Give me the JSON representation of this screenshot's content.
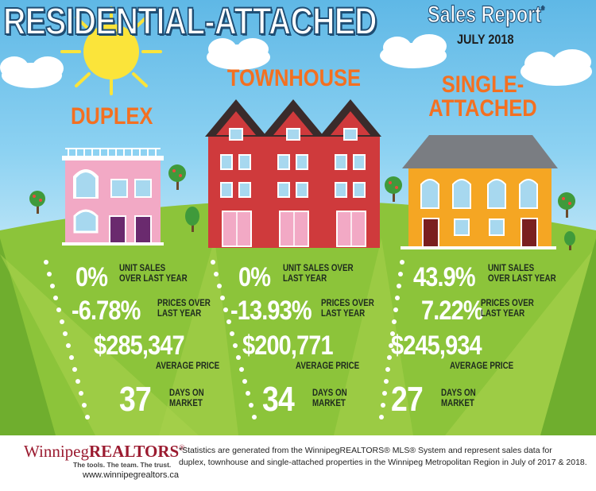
{
  "header": {
    "title": "RESIDENTIAL-ATTACHED",
    "subtitle": "Sales Report",
    "subtitle_mark": "*",
    "date": "JULY 2018"
  },
  "columns": [
    {
      "name": "DUPLEX",
      "unit_sales_pct": "0%",
      "unit_sales_label_1": "UNIT SALES",
      "unit_sales_label_2": "OVER LAST YEAR",
      "price_pct": "-6.78%",
      "price_label_1": "PRICES OVER",
      "price_label_2": "LAST YEAR",
      "avg_price": "$285,347",
      "avg_price_label": "AVERAGE PRICE",
      "days": "37",
      "days_label_1": "DAYS ON",
      "days_label_2": "MARKET",
      "house_color": "#f2a9c5"
    },
    {
      "name": "TOWNHOUSE",
      "unit_sales_pct": "0%",
      "unit_sales_label_1": "UNIT SALES OVER",
      "unit_sales_label_2": "LAST YEAR",
      "price_pct": "-13.93%",
      "price_label_1": "PRICES OVER",
      "price_label_2": "LAST YEAR",
      "avg_price": "$200,771",
      "avg_price_label": "AVERAGE PRICE",
      "days": "34",
      "days_label_1": "DAYS ON",
      "days_label_2": "MARKET",
      "house_color": "#cf3a3c"
    },
    {
      "name_line_1": "SINGLE-",
      "name_line_2": "ATTACHED",
      "unit_sales_pct": "43.9%",
      "unit_sales_label_1": "UNIT SALES",
      "unit_sales_label_2": "OVER LAST YEAR",
      "price_pct": "7.22%",
      "price_label_1": "PRICES OVER",
      "price_label_2": "LAST YEAR",
      "avg_price": "$245,934",
      "avg_price_label": "AVERAGE PRICE",
      "days": "27",
      "days_label_1": "DAYS ON",
      "days_label_2": "MARKET",
      "house_color": "#f5a623"
    }
  ],
  "footer": {
    "logo_part_1": "Winnipeg",
    "logo_part_2": "REALTORS",
    "logo_mark": "®",
    "tagline": "The tools. The team. The trust.",
    "url": "www.winnipegrealtors.ca",
    "note_line_1": "*Statistics are generated from the WinnipegREALTORS® MLS® System and represent sales data for",
    "note_line_2": "duplex, townhouse and single-attached properties in the Winnipeg Metropolitan Region in July of 2017 & 2018."
  },
  "colors": {
    "accent_orange": "#f37021",
    "title_outline": "#1f4d73",
    "grass_light": "#9ccc3c",
    "grass_dark": "#6fae2e",
    "logo_red": "#9b1b30"
  }
}
